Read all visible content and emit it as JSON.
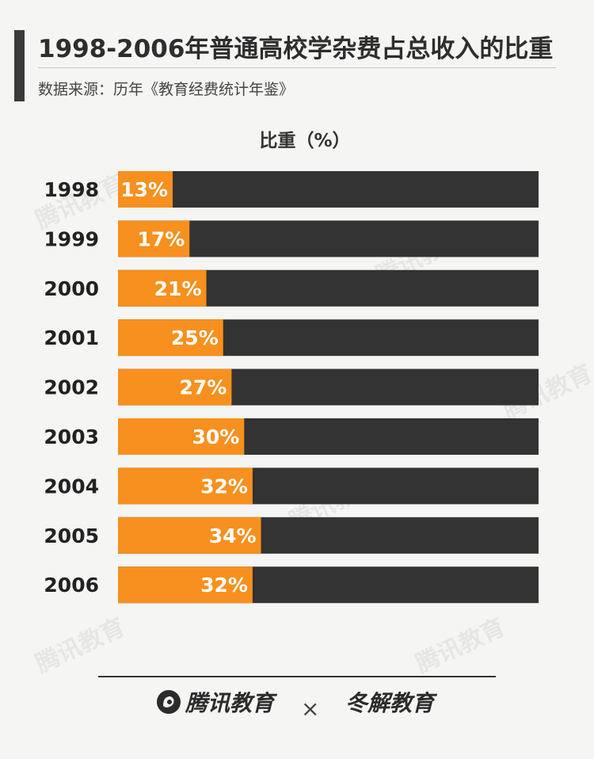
{
  "title": "1998-2006年普通高校学杂费占总收入的比重",
  "source": "数据来源：历年《教育经费统计年鉴》",
  "chart_data": {
    "type": "bar",
    "orientation": "horizontal",
    "stacked_to_100": true,
    "ylabel": "比重（%）",
    "categories": [
      "1998",
      "1999",
      "2000",
      "2001",
      "2002",
      "2003",
      "2004",
      "2005",
      "2006"
    ],
    "values": [
      13,
      17,
      21,
      25,
      27,
      30,
      32,
      34,
      32
    ],
    "value_labels": [
      "13%",
      "17%",
      "21%",
      "25%",
      "27%",
      "30%",
      "32%",
      "34%",
      "32%"
    ],
    "xlim": [
      0,
      100
    ],
    "colors": {
      "value": "#f7901e",
      "remainder": "#333333"
    },
    "grid": false,
    "legend": "none"
  },
  "footer": {
    "brand_left": "腾讯教育",
    "separator": "×",
    "brand_right": "冬解教育"
  },
  "watermark_text": "腾讯教育",
  "icons": {
    "left_logo": "tencent-edu-logo-icon",
    "separator": "cross-icon"
  }
}
